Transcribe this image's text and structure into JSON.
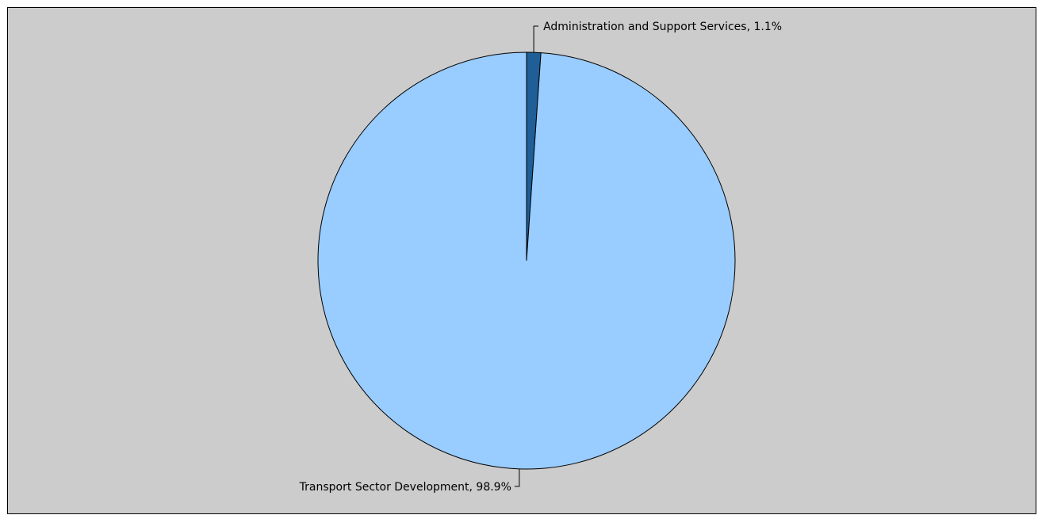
{
  "chart_data": {
    "type": "pie",
    "slices": [
      {
        "label": "Administration and Support Services",
        "value": 1.1,
        "display": "Administration and Support Services, 1.1%",
        "color": "#1f5e96"
      },
      {
        "label": "Transport Sector Development",
        "value": 98.9,
        "display": "Transport Sector Development, 98.9%",
        "color": "#99ccff"
      }
    ],
    "start_angle": "12 o'clock",
    "direction": "clockwise",
    "background_color": "#cccccc",
    "outline_color": "#000000"
  }
}
